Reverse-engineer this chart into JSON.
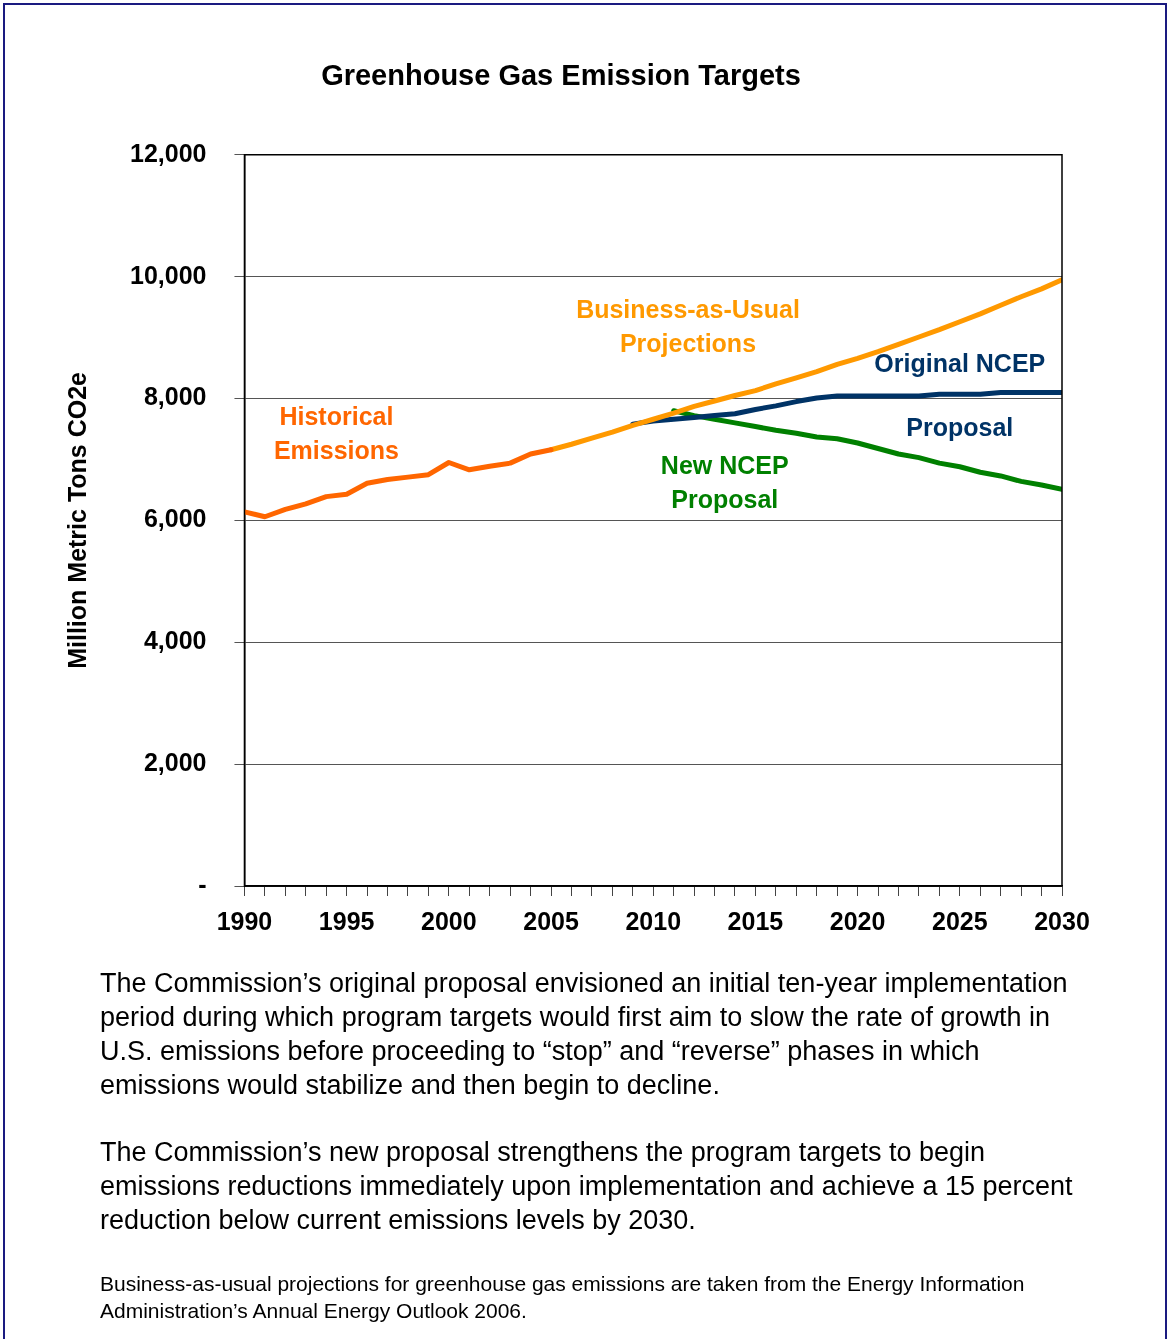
{
  "chart_data": {
    "type": "line",
    "title": "Greenhouse Gas Emission Targets",
    "ylabel": "Million Metric Tons CO2e",
    "xlim": [
      1990,
      2030
    ],
    "xticks": [
      1990,
      {
        "value": 1991,
        "label": null
      },
      {
        "value": 1992,
        "label": null
      },
      {
        "value": 1993,
        "label": null
      },
      {
        "value": 1994,
        "label": null
      },
      1995,
      {
        "value": 1996,
        "label": null
      },
      {
        "value": 1997,
        "label": null
      },
      {
        "value": 1998,
        "label": null
      },
      {
        "value": 1999,
        "label": null
      },
      2000,
      {
        "value": 2001,
        "label": null
      },
      {
        "value": 2002,
        "label": null
      },
      {
        "value": 2003,
        "label": null
      },
      {
        "value": 2004,
        "label": null
      },
      2005,
      {
        "value": 2006,
        "label": null
      },
      {
        "value": 2007,
        "label": null
      },
      {
        "value": 2008,
        "label": null
      },
      {
        "value": 2009,
        "label": null
      },
      2010,
      {
        "value": 2011,
        "label": null
      },
      {
        "value": 2012,
        "label": null
      },
      {
        "value": 2013,
        "label": null
      },
      {
        "value": 2014,
        "label": null
      },
      2015,
      {
        "value": 2016,
        "label": null
      },
      {
        "value": 2017,
        "label": null
      },
      {
        "value": 2018,
        "label": null
      },
      {
        "value": 2019,
        "label": null
      },
      2020,
      {
        "value": 2021,
        "label": null
      },
      {
        "value": 2022,
        "label": null
      },
      {
        "value": 2023,
        "label": null
      },
      {
        "value": 2024,
        "label": null
      },
      2025,
      {
        "value": 2026,
        "label": null
      },
      {
        "value": 2027,
        "label": null
      },
      {
        "value": 2028,
        "label": null
      },
      {
        "value": 2029,
        "label": null
      },
      2030
    ],
    "ylim": [
      0,
      12000
    ],
    "yticks": [
      {
        "value": 0,
        "label": "-"
      },
      {
        "value": 2000,
        "label": "2,000"
      },
      {
        "value": 4000,
        "label": "4,000"
      },
      {
        "value": 6000,
        "label": "6,000"
      },
      {
        "value": 8000,
        "label": "8,000"
      },
      {
        "value": 10000,
        "label": "10,000"
      },
      {
        "value": 12000,
        "label": "12,000"
      }
    ],
    "grid": "y",
    "legend": false,
    "marker": "none",
    "line_style": "solid",
    "series": [
      {
        "name": "Historical Emissions",
        "color": "#ff6600",
        "x": [
          1990,
          1991,
          1992,
          1993,
          1994,
          1995,
          1996,
          1997,
          1998,
          1999,
          2000,
          2001,
          2002,
          2003,
          2004,
          2005
        ],
        "values": [
          6140,
          6060,
          6180,
          6270,
          6390,
          6430,
          6610,
          6670,
          6710,
          6750,
          6950,
          6830,
          6890,
          6940,
          7090,
          7160
        ]
      },
      {
        "name": "Business-as-Usual Projections",
        "color": "#ff9900",
        "x": [
          2005,
          2006,
          2007,
          2008,
          2009,
          2010,
          2011,
          2012,
          2013,
          2014,
          2015,
          2016,
          2017,
          2018,
          2019,
          2020,
          2021,
          2022,
          2023,
          2024,
          2025,
          2026,
          2027,
          2028,
          2029,
          2030
        ],
        "values": [
          7160,
          7250,
          7350,
          7450,
          7560,
          7660,
          7760,
          7870,
          7960,
          8050,
          8130,
          8240,
          8340,
          8440,
          8560,
          8660,
          8770,
          8890,
          9010,
          9130,
          9260,
          9390,
          9530,
          9670,
          9800,
          9950
        ]
      },
      {
        "name": "Original NCEP Proposal",
        "color": "#003366",
        "x": [
          2009,
          2010,
          2011,
          2012,
          2013,
          2014,
          2015,
          2016,
          2017,
          2018,
          2019,
          2020,
          2021,
          2022,
          2023,
          2024,
          2025,
          2026,
          2027,
          2028,
          2029,
          2030
        ],
        "values": [
          7580,
          7630,
          7660,
          7690,
          7720,
          7750,
          7820,
          7880,
          7950,
          8010,
          8040,
          8040,
          8040,
          8040,
          8040,
          8070,
          8070,
          8070,
          8100,
          8100,
          8100,
          8100
        ]
      },
      {
        "name": "New NCEP Proposal",
        "color": "#008000",
        "x": [
          2011,
          2012,
          2013,
          2014,
          2015,
          2016,
          2017,
          2018,
          2019,
          2020,
          2021,
          2022,
          2023,
          2024,
          2025,
          2026,
          2027,
          2028,
          2029,
          2030
        ],
        "values": [
          7800,
          7720,
          7660,
          7600,
          7540,
          7480,
          7430,
          7370,
          7340,
          7270,
          7180,
          7090,
          7030,
          6940,
          6880,
          6790,
          6730,
          6640,
          6580,
          6510
        ]
      }
    ],
    "annotations": [
      "The Commission’s original proposal envisioned an initial ten-year implementation period during which program targets would first aim to slow the rate of growth in U.S. emissions before proceeding to “stop” and “reverse” phases in which emissions would stabilize and then begin to decline.",
      "The Commission’s new proposal strengthens the program targets to begin emissions reductions immediately upon implementation and achieve a 15 percent reduction below current emissions levels by 2030.",
      "Business-as-usual projections for greenhouse gas emissions are taken from the Energy Information Administration’s Annual Energy Outlook 2006."
    ]
  }
}
